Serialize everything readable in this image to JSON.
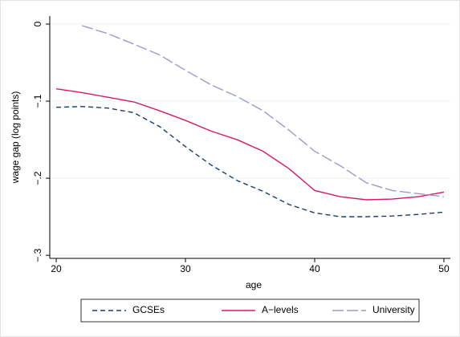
{
  "chart_data": {
    "type": "line",
    "x_label": "age",
    "y_label": "wage gap (log points)",
    "x": [
      20,
      22,
      24,
      26,
      28,
      30,
      32,
      34,
      36,
      38,
      40,
      42,
      44,
      46,
      48,
      50
    ],
    "series": [
      {
        "name": "GCSEs",
        "color": "#1a3d6b",
        "dash": "6,4",
        "values": [
          -0.108,
          -0.107,
          -0.109,
          -0.115,
          -0.133,
          -0.159,
          -0.183,
          -0.203,
          -0.217,
          -0.234,
          -0.245,
          -0.25,
          -0.25,
          -0.249,
          -0.247,
          -0.244
        ]
      },
      {
        "name": "A−levels",
        "color": "#d6186d",
        "dash": "",
        "values": [
          -0.084,
          -0.089,
          -0.095,
          -0.101,
          -0.1125,
          -0.125,
          -0.139,
          -0.15,
          -0.165,
          -0.1875,
          -0.216,
          -0.224,
          -0.228,
          -0.227,
          -0.224,
          -0.218
        ]
      },
      {
        "name": "University",
        "color": "#9a9ad2",
        "dash": "14,4",
        "values": [
          null,
          -0.002,
          -0.0125,
          -0.026,
          -0.04,
          -0.06,
          -0.079,
          -0.094,
          -0.1125,
          -0.1375,
          -0.165,
          -0.184,
          -0.206,
          -0.216,
          -0.22,
          -0.224
        ]
      }
    ],
    "xlim": [
      19.5,
      50.5
    ],
    "xticks": [
      20,
      30,
      40,
      50
    ],
    "ylim": [
      -0.304,
      0.0104
    ],
    "yticks": [
      0,
      {
        "value": -0.1,
        "label": "−.1"
      },
      {
        "value": -0.2,
        "label": "−.2"
      },
      {
        "value": -0.3,
        "label": "−.3"
      }
    ],
    "grid": true
  }
}
